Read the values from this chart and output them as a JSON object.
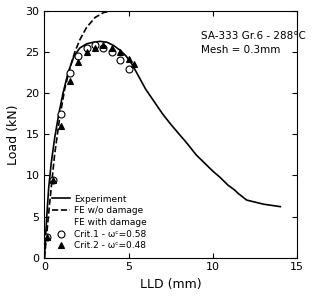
{
  "title": "SA-333 Gr.6 - 288°C\nMesh = 0.3mm",
  "xlabel": "LLD (mm)",
  "ylabel": "Load (kN)",
  "xlim": [
    0,
    15
  ],
  "ylim": [
    0,
    30
  ],
  "xticks": [
    0,
    5,
    10,
    15
  ],
  "yticks": [
    0,
    5,
    10,
    15,
    20,
    25,
    30
  ],
  "experiment_x": [
    0.0,
    0.05,
    0.15,
    0.25,
    0.4,
    0.6,
    0.85,
    1.1,
    1.4,
    1.75,
    2.1,
    2.5,
    2.9,
    3.3,
    3.7,
    4.1,
    4.5,
    4.85,
    5.2,
    5.6,
    6.0,
    6.5,
    7.0,
    7.5,
    8.0,
    8.5,
    9.0,
    9.5,
    10.0,
    10.4,
    10.7,
    10.9,
    11.1,
    11.3,
    11.5,
    12.0,
    13.0,
    14.0
  ],
  "experiment_y": [
    0.0,
    2.0,
    5.5,
    8.5,
    11.5,
    14.5,
    17.5,
    20.0,
    22.5,
    24.5,
    25.5,
    26.0,
    26.2,
    26.3,
    26.2,
    25.8,
    25.2,
    24.5,
    23.5,
    22.0,
    20.5,
    19.0,
    17.5,
    16.2,
    15.0,
    13.8,
    12.5,
    11.5,
    10.5,
    9.8,
    9.2,
    8.8,
    8.5,
    8.2,
    7.8,
    7.0,
    6.5,
    6.2
  ],
  "fe_nodamage_x": [
    0.0,
    0.3,
    0.6,
    0.9,
    1.2,
    1.5,
    1.8,
    2.1,
    2.5,
    3.0,
    3.5,
    4.0,
    4.5
  ],
  "fe_nodamage_y": [
    0.0,
    6.5,
    12.5,
    17.0,
    20.5,
    23.0,
    25.0,
    26.5,
    28.0,
    29.2,
    29.8,
    30.0,
    30.2
  ],
  "crit1_x": [
    0.15,
    0.5,
    1.0,
    1.5,
    2.0,
    2.5,
    3.0,
    3.5,
    4.0,
    4.5,
    5.0
  ],
  "crit1_y": [
    2.5,
    9.5,
    17.5,
    22.5,
    24.5,
    25.5,
    25.8,
    25.5,
    25.0,
    24.0,
    23.0
  ],
  "crit2_x": [
    0.15,
    0.5,
    1.0,
    1.5,
    2.0,
    2.5,
    3.0,
    3.5,
    4.0,
    4.5,
    5.0,
    5.3
  ],
  "crit2_y": [
    2.5,
    9.5,
    16.0,
    21.5,
    23.8,
    25.0,
    25.5,
    25.8,
    25.5,
    25.0,
    24.2,
    23.5
  ],
  "legend_experiment": "Experiment",
  "legend_fe_nodamage": "FE w/o damage",
  "legend_fe_damage": "FE with damage",
  "legend_crit1": "Crit.1 - ωᶜ=0.58",
  "legend_crit2": "Crit.2 - ωᶜ=0.48",
  "line_color": "#000000",
  "background_color": "#ffffff"
}
